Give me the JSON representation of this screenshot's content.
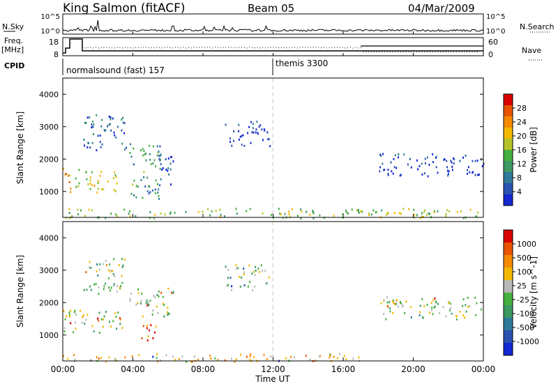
{
  "header": {
    "station": "King Salmon (fitACF)",
    "beam": "Beam 05",
    "date": "04/Mar/2009"
  },
  "top_panels": {
    "nsky_label": "N.Sky",
    "nsearch_label": "N.Search",
    "nsky_ticks": [
      "10^5",
      "10^0"
    ],
    "nsearch_ticks": [
      "10^5",
      "10^0"
    ],
    "freq_label_1": "Freq.",
    "freq_label_2": "[MHz]",
    "freq_ticks": [
      "18",
      "8"
    ],
    "nave_label": "Nave",
    "nave_ticks": [
      "60",
      "0"
    ],
    "cpid_label": "CPID",
    "cpid_entries": [
      {
        "text": "normalsound (fast) 157",
        "start_hour": 0
      },
      {
        "text": "themis 3300",
        "start_hour": 12
      }
    ]
  },
  "x_axis": {
    "label": "Time UT",
    "ticks": [
      "00:00",
      "04:00",
      "08:00",
      "12:00",
      "16:00",
      "20:00",
      "00:00"
    ]
  },
  "colors": {
    "power": [
      "#1428d2",
      "#2a52b0",
      "#2f7a9a",
      "#3c9a62",
      "#46b040",
      "#b4c428",
      "#f2b800",
      "#f58a00",
      "#e85400",
      "#d80000"
    ],
    "velocity": [
      "#1428d2",
      "#2a52b0",
      "#2f7a9a",
      "#3c9a62",
      "#46b040",
      "#b8b8b8",
      "#f2b800",
      "#f58a00",
      "#e85400",
      "#d80000"
    ]
  },
  "chart_data": [
    {
      "type": "heatmap",
      "panel": "power",
      "ylabel": "Slant Range [km]",
      "ylim": [
        200,
        4500
      ],
      "yticks": [
        1000,
        2000,
        3000,
        4000
      ],
      "xlim": [
        0,
        24
      ],
      "colorbar": {
        "label": "Power [dB]",
        "range": [
          0,
          32
        ],
        "ticks": [
          "28",
          "24",
          "20",
          "16",
          "12",
          "8",
          "4"
        ]
      },
      "regions": [
        {
          "t0": 0.0,
          "t1": 0.5,
          "r0": 900,
          "r1": 1800,
          "level": 0.75
        },
        {
          "t0": 0.7,
          "t1": 3.2,
          "r0": 1000,
          "r1": 1700,
          "level": 0.55
        },
        {
          "t0": 1.1,
          "t1": 3.6,
          "r0": 2300,
          "r1": 3400,
          "level": 0.2
        },
        {
          "t0": 3.8,
          "t1": 5.6,
          "r0": 800,
          "r1": 2500,
          "level": 0.35
        },
        {
          "t0": 5.3,
          "t1": 6.3,
          "r0": 1200,
          "r1": 2300,
          "level": 0.1
        },
        {
          "t0": 9.2,
          "t1": 11.8,
          "r0": 2400,
          "r1": 3200,
          "level": 0.12
        },
        {
          "t0": 18.0,
          "t1": 24.0,
          "r0": 1500,
          "r1": 2200,
          "level": 0.08
        },
        {
          "t0": 0.0,
          "t1": 24.0,
          "r0": 200,
          "r1": 500,
          "level": 0.5
        }
      ]
    },
    {
      "type": "heatmap",
      "panel": "velocity",
      "ylabel": "Slant Range [km]",
      "ylim": [
        200,
        4500
      ],
      "yticks": [
        1000,
        2000,
        3000,
        4000
      ],
      "xlim": [
        0,
        24
      ],
      "colorbar": {
        "label": "Velocity [m s^-1]",
        "range": [
          -1200,
          1200
        ],
        "ticks": [
          "1000",
          "500",
          "100",
          "25",
          "-25",
          "-100",
          "-500",
          "-1000"
        ]
      },
      "regions": [
        {
          "t0": 0.0,
          "t1": 3.5,
          "r0": 1100,
          "r1": 1800,
          "level": 0.5
        },
        {
          "t0": 1.1,
          "t1": 3.6,
          "r0": 2300,
          "r1": 3400,
          "level": 0.5
        },
        {
          "t0": 4.4,
          "t1": 5.4,
          "r0": 800,
          "r1": 1400,
          "level": 0.82
        },
        {
          "t0": 3.8,
          "t1": 6.3,
          "r0": 1600,
          "r1": 2500,
          "level": 0.5
        },
        {
          "t0": 9.2,
          "t1": 11.8,
          "r0": 2400,
          "r1": 3200,
          "level": 0.5
        },
        {
          "t0": 18.0,
          "t1": 24.0,
          "r0": 1500,
          "r1": 2200,
          "level": 0.5
        },
        {
          "t0": 0.0,
          "t1": 17.0,
          "r0": 200,
          "r1": 450,
          "level": 0.65
        }
      ]
    }
  ]
}
